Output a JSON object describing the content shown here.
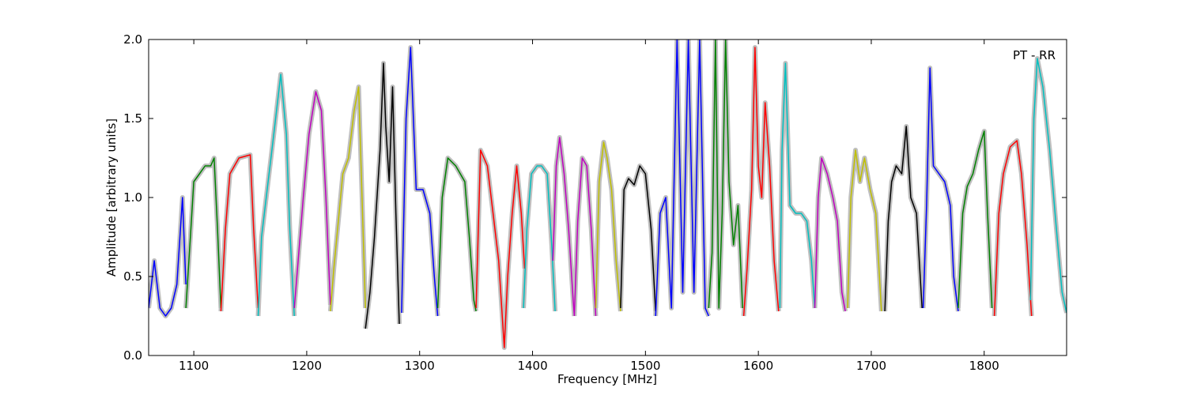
{
  "chart_data": {
    "type": "line",
    "annotation": "PT - RR",
    "xlabel": "Frequency [MHz]",
    "ylabel": "Amplitude [arbitrary units]",
    "xlim": [
      1060,
      1873
    ],
    "ylim": [
      0.0,
      2.0
    ],
    "x_ticks": [
      1100,
      1200,
      1300,
      1400,
      1500,
      1600,
      1700,
      1800
    ],
    "x_tick_labels": [
      "1100",
      "1200",
      "1300",
      "1400",
      "1500",
      "1600",
      "1700",
      "1800"
    ],
    "y_ticks": [
      0.0,
      0.5,
      1.0,
      1.5,
      2.0
    ],
    "y_tick_labels": [
      "0.0",
      "0.5",
      "1.0",
      "1.5",
      "2.0"
    ],
    "grid": false,
    "raw_color": "#bfbfbf",
    "bands": [
      {
        "color": "#0000ff",
        "x": [
          1060,
          1065,
          1070,
          1075,
          1080,
          1085,
          1090,
          1093
        ],
        "y": [
          0.3,
          0.6,
          0.3,
          0.25,
          0.3,
          0.45,
          1.0,
          0.45
        ]
      },
      {
        "color": "#008000",
        "x": [
          1093,
          1097,
          1100,
          1105,
          1110,
          1115,
          1118,
          1121,
          1124
        ],
        "y": [
          0.3,
          0.75,
          1.1,
          1.15,
          1.2,
          1.2,
          1.25,
          0.8,
          0.3
        ]
      },
      {
        "color": "#ff0000",
        "x": [
          1124,
          1128,
          1132,
          1140,
          1150,
          1153,
          1157
        ],
        "y": [
          0.28,
          0.8,
          1.15,
          1.25,
          1.27,
          0.8,
          0.3
        ]
      },
      {
        "color": "#00bfbf",
        "x": [
          1157,
          1160,
          1165,
          1170,
          1177,
          1182,
          1185,
          1189
        ],
        "y": [
          0.25,
          0.75,
          1.05,
          1.35,
          1.78,
          1.4,
          0.8,
          0.25
        ]
      },
      {
        "color": "#bf00bf",
        "x": [
          1189,
          1193,
          1197,
          1202,
          1208,
          1213,
          1217,
          1221
        ],
        "y": [
          0.3,
          0.65,
          1.0,
          1.4,
          1.67,
          1.55,
          1.0,
          0.32
        ]
      },
      {
        "color": "#bfbf00",
        "x": [
          1221,
          1224,
          1228,
          1232,
          1237,
          1242,
          1246,
          1249,
          1252
        ],
        "y": [
          0.28,
          0.55,
          0.85,
          1.15,
          1.25,
          1.55,
          1.7,
          1.0,
          0.3
        ]
      },
      {
        "color": "#000000",
        "x": [
          1252,
          1256,
          1260,
          1265,
          1268,
          1270,
          1273,
          1276,
          1279,
          1282
        ],
        "y": [
          0.17,
          0.4,
          0.75,
          1.3,
          1.85,
          1.45,
          1.1,
          1.7,
          0.9,
          0.2
        ]
      },
      {
        "color": "#0000ff",
        "x": [
          1284,
          1288,
          1292,
          1297,
          1303,
          1309,
          1313,
          1316
        ],
        "y": [
          0.27,
          1.5,
          1.95,
          1.05,
          1.05,
          0.9,
          0.5,
          0.25
        ]
      },
      {
        "color": "#008000",
        "x": [
          1316,
          1320,
          1325,
          1332,
          1340,
          1344,
          1348,
          1350
        ],
        "y": [
          0.3,
          1.0,
          1.25,
          1.2,
          1.1,
          0.75,
          0.35,
          0.28
        ]
      },
      {
        "color": "#ff0000",
        "x": [
          1350,
          1354,
          1360,
          1365,
          1370,
          1375,
          1378,
          1382,
          1386,
          1390,
          1393
        ],
        "y": [
          0.3,
          1.3,
          1.2,
          0.9,
          0.6,
          0.05,
          0.5,
          0.9,
          1.2,
          0.9,
          0.55
        ]
      },
      {
        "color": "#00bfbf",
        "x": [
          1392,
          1395,
          1399,
          1404,
          1408,
          1413,
          1417,
          1420
        ],
        "y": [
          0.3,
          0.8,
          1.15,
          1.2,
          1.2,
          1.15,
          0.7,
          0.28
        ]
      },
      {
        "color": "#bf00bf",
        "x": [
          1418,
          1421,
          1424,
          1428,
          1432,
          1436,
          1437
        ],
        "y": [
          0.6,
          1.2,
          1.38,
          1.15,
          0.8,
          0.35,
          0.25
        ]
      },
      {
        "color": "#bf00bf",
        "x": [
          1437,
          1440,
          1444,
          1448,
          1452,
          1456
        ],
        "y": [
          0.25,
          0.85,
          1.25,
          1.2,
          0.8,
          0.25
        ]
      },
      {
        "color": "#bfbf00",
        "x": [
          1456,
          1459,
          1463,
          1466,
          1470,
          1474,
          1478
        ],
        "y": [
          0.3,
          1.1,
          1.35,
          1.25,
          1.05,
          0.6,
          0.28
        ]
      },
      {
        "color": "#000000",
        "x": [
          1478,
          1481,
          1485,
          1490,
          1495,
          1500,
          1505,
          1509
        ],
        "y": [
          0.3,
          1.05,
          1.12,
          1.08,
          1.2,
          1.15,
          0.8,
          0.28
        ]
      },
      {
        "color": "#0000ff",
        "x": [
          1509,
          1513,
          1518,
          1523,
          1528,
          1533,
          1538,
          1543,
          1548,
          1553,
          1556
        ],
        "y": [
          0.25,
          0.9,
          1.0,
          0.3,
          2.0,
          0.4,
          2.0,
          0.4,
          2.0,
          0.3,
          0.25
        ]
      },
      {
        "color": "#008000",
        "x": [
          1556,
          1559,
          1562,
          1565,
          1568,
          1571,
          1574,
          1578,
          1582,
          1586
        ],
        "y": [
          0.3,
          0.65,
          2.0,
          0.3,
          0.9,
          2.0,
          1.1,
          0.7,
          0.95,
          0.3
        ]
      },
      {
        "color": "#ff0000",
        "x": [
          1587,
          1590,
          1594,
          1597,
          1600,
          1603,
          1606,
          1610,
          1614,
          1618
        ],
        "y": [
          0.25,
          0.55,
          1.05,
          1.95,
          1.2,
          1.0,
          1.6,
          1.2,
          0.6,
          0.28
        ]
      },
      {
        "color": "#00bfbf",
        "x": [
          1619,
          1621,
          1624,
          1628,
          1633,
          1638,
          1643,
          1647,
          1650
        ],
        "y": [
          0.3,
          1.3,
          1.85,
          0.95,
          0.9,
          0.9,
          0.85,
          0.6,
          0.3
        ]
      },
      {
        "color": "#bf00bf",
        "x": [
          1650,
          1653,
          1656,
          1661,
          1666,
          1670,
          1674,
          1677
        ],
        "y": [
          0.3,
          1.0,
          1.25,
          1.15,
          1.0,
          0.85,
          0.4,
          0.28
        ]
      },
      {
        "color": "#bfbf00",
        "x": [
          1679,
          1682,
          1686,
          1690,
          1694,
          1699,
          1704,
          1709
        ],
        "y": [
          0.3,
          1.0,
          1.3,
          1.1,
          1.25,
          1.05,
          0.9,
          0.28
        ]
      },
      {
        "color": "#000000",
        "x": [
          1712,
          1715,
          1718,
          1722,
          1727,
          1731,
          1735,
          1740,
          1745
        ],
        "y": [
          0.28,
          0.85,
          1.1,
          1.2,
          1.15,
          1.45,
          1.0,
          0.9,
          0.3
        ]
      },
      {
        "color": "#0000ff",
        "x": [
          1746,
          1749,
          1752,
          1755,
          1760,
          1765,
          1770,
          1773,
          1777
        ],
        "y": [
          0.3,
          0.95,
          1.82,
          1.2,
          1.15,
          1.1,
          0.95,
          0.5,
          0.28
        ]
      },
      {
        "color": "#008000",
        "x": [
          1777,
          1781,
          1785,
          1790,
          1795,
          1800,
          1803,
          1807
        ],
        "y": [
          0.3,
          0.9,
          1.07,
          1.15,
          1.3,
          1.42,
          0.9,
          0.3
        ]
      },
      {
        "color": "#ff0000",
        "x": [
          1809,
          1813,
          1817,
          1823,
          1829,
          1833,
          1838,
          1842
        ],
        "y": [
          0.25,
          0.9,
          1.15,
          1.32,
          1.36,
          1.15,
          0.7,
          0.25
        ]
      },
      {
        "color": "#00bfbf",
        "x": [
          1841,
          1844,
          1847,
          1852,
          1858,
          1864,
          1869,
          1873
        ],
        "y": [
          0.35,
          1.5,
          1.88,
          1.7,
          1.3,
          0.8,
          0.4,
          0.27
        ]
      }
    ]
  }
}
